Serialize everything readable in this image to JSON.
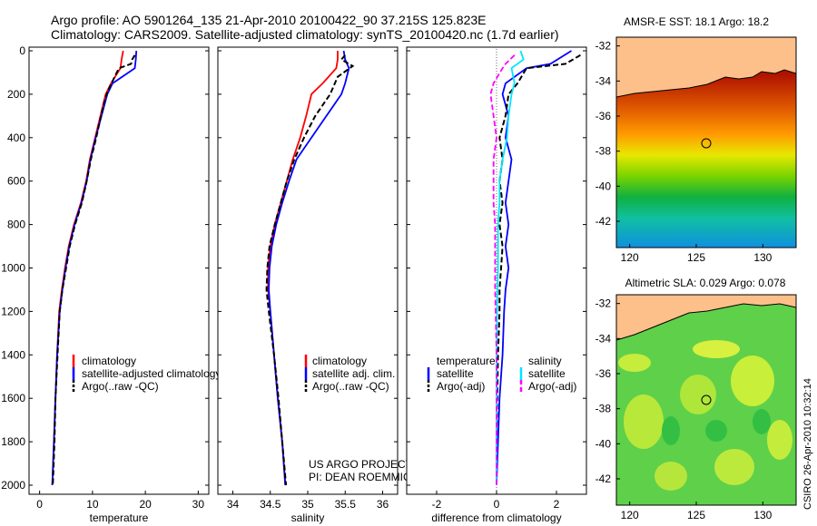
{
  "title_line1": "Argo profile: AO 5901264_135 21-Apr-2010 20100422_90 37.215S 125.823E",
  "title_line2": "Climatology: CARS2009. Satellite-adjusted climatology: synTS_20100420.nc (1.7d earlier)",
  "side_label": "CSIRO 26-Apr-2010 10:32:14",
  "colors": {
    "climatology": "#ff0000",
    "satellite": "#0000ff",
    "argo": "#000000",
    "sat_diff_salinity": "#00e5ff",
    "argo_diff_salinity": "#ff00ff"
  },
  "chart_data": [
    {
      "type": "line",
      "xlabel": "temperature",
      "ylabel": "",
      "xlim": [
        -2,
        32
      ],
      "ylim": [
        2000,
        0
      ],
      "xticks": [
        "0",
        "10",
        "20",
        "30"
      ],
      "yticks": [
        "0",
        "200",
        "400",
        "600",
        "800",
        "1000",
        "1200",
        "1400",
        "1600",
        "1800",
        "2000"
      ],
      "legend": [
        "climatology",
        "satellite-adjusted climatology",
        "Argo(..raw -QC)"
      ],
      "series": [
        {
          "name": "climatology",
          "color": "red",
          "points": [
            [
              15.8,
              0
            ],
            [
              15.5,
              40
            ],
            [
              15.3,
              80
            ],
            [
              13.5,
              150
            ],
            [
              12.5,
              200
            ],
            [
              11.5,
              300
            ],
            [
              10.5,
              400
            ],
            [
              9.5,
              500
            ],
            [
              8.8,
              600
            ],
            [
              7.8,
              700
            ],
            [
              6.5,
              800
            ],
            [
              5.5,
              900
            ],
            [
              4.8,
              1000
            ],
            [
              4.2,
              1100
            ],
            [
              3.7,
              1200
            ],
            [
              3.3,
              1400
            ],
            [
              3.0,
              1600
            ],
            [
              2.7,
              1800
            ],
            [
              2.4,
              2000
            ]
          ]
        },
        {
          "name": "satellite-adjusted climatology",
          "color": "blue",
          "points": [
            [
              18.3,
              0
            ],
            [
              18.2,
              40
            ],
            [
              18.0,
              80
            ],
            [
              13.8,
              150
            ],
            [
              12.8,
              200
            ],
            [
              11.7,
              300
            ],
            [
              10.6,
              400
            ],
            [
              9.6,
              500
            ],
            [
              8.9,
              600
            ],
            [
              7.9,
              700
            ],
            [
              6.6,
              800
            ],
            [
              5.6,
              900
            ],
            [
              4.9,
              1000
            ],
            [
              4.3,
              1100
            ],
            [
              3.8,
              1200
            ],
            [
              3.3,
              1400
            ],
            [
              3.0,
              1600
            ],
            [
              2.7,
              1800
            ],
            [
              2.4,
              2000
            ]
          ]
        },
        {
          "name": "Argo(..raw -QC)",
          "color": "black",
          "points": [
            [
              18.0,
              20
            ],
            [
              17.5,
              40
            ],
            [
              17.3,
              60
            ],
            [
              15.0,
              80
            ],
            [
              14.2,
              120
            ],
            [
              13.0,
              180
            ],
            [
              12.4,
              220
            ],
            [
              11.6,
              300
            ],
            [
              10.7,
              400
            ],
            [
              9.7,
              500
            ],
            [
              8.9,
              600
            ],
            [
              8.0,
              700
            ],
            [
              6.7,
              800
            ],
            [
              5.7,
              900
            ],
            [
              5.0,
              1000
            ],
            [
              4.3,
              1100
            ],
            [
              3.8,
              1200
            ],
            [
              3.4,
              1400
            ],
            [
              3.0,
              1600
            ],
            [
              2.8,
              1800
            ],
            [
              2.5,
              2000
            ]
          ]
        }
      ]
    },
    {
      "type": "line",
      "xlabel": "salinity",
      "xlim": [
        33.8,
        36.2
      ],
      "ylim": [
        2000,
        0
      ],
      "xticks": [
        "34",
        "34.5",
        "35",
        "35.5",
        "36"
      ],
      "legend": [
        "climatology",
        "satellite adj. clim.",
        "Argo(..raw -QC)"
      ],
      "annotation": [
        "US ARGO PROJECT",
        "PI: DEAN ROEMMICH"
      ],
      "series": [
        {
          "name": "climatology",
          "color": "red",
          "points": [
            [
              35.4,
              0
            ],
            [
              35.4,
              40
            ],
            [
              35.38,
              80
            ],
            [
              35.2,
              150
            ],
            [
              35.05,
              200
            ],
            [
              34.98,
              300
            ],
            [
              34.9,
              400
            ],
            [
              34.8,
              500
            ],
            [
              34.72,
              600
            ],
            [
              34.64,
              700
            ],
            [
              34.56,
              800
            ],
            [
              34.5,
              900
            ],
            [
              34.47,
              1000
            ],
            [
              34.47,
              1100
            ],
            [
              34.5,
              1200
            ],
            [
              34.55,
              1400
            ],
            [
              34.6,
              1600
            ],
            [
              34.66,
              1800
            ],
            [
              34.7,
              2000
            ]
          ]
        },
        {
          "name": "satellite adj. clim.",
          "color": "blue",
          "points": [
            [
              35.48,
              0
            ],
            [
              35.5,
              40
            ],
            [
              35.55,
              80
            ],
            [
              35.5,
              150
            ],
            [
              35.45,
              200
            ],
            [
              35.25,
              300
            ],
            [
              35.05,
              400
            ],
            [
              34.85,
              500
            ],
            [
              34.75,
              600
            ],
            [
              34.66,
              700
            ],
            [
              34.58,
              800
            ],
            [
              34.52,
              900
            ],
            [
              34.49,
              1000
            ],
            [
              34.48,
              1100
            ],
            [
              34.5,
              1200
            ],
            [
              34.55,
              1400
            ],
            [
              34.6,
              1600
            ],
            [
              34.66,
              1800
            ],
            [
              34.7,
              2000
            ]
          ]
        },
        {
          "name": "Argo(..raw -QC)",
          "color": "black",
          "points": [
            [
              35.5,
              20
            ],
            [
              35.45,
              40
            ],
            [
              35.6,
              70
            ],
            [
              35.4,
              120
            ],
            [
              35.3,
              200
            ],
            [
              35.1,
              300
            ],
            [
              34.95,
              400
            ],
            [
              34.82,
              500
            ],
            [
              34.72,
              600
            ],
            [
              34.64,
              700
            ],
            [
              34.56,
              800
            ],
            [
              34.49,
              900
            ],
            [
              34.46,
              1000
            ],
            [
              34.45,
              1100
            ],
            [
              34.48,
              1200
            ],
            [
              34.55,
              1400
            ],
            [
              34.61,
              1600
            ],
            [
              34.66,
              1800
            ],
            [
              34.71,
              2000
            ]
          ]
        }
      ]
    },
    {
      "type": "line",
      "xlabel": "difference from climatology",
      "xlim": [
        -3.0,
        3.0
      ],
      "ylim": [
        2000,
        0
      ],
      "xticks": [
        "-2",
        "0",
        "2"
      ],
      "legend_left_title": "temperature",
      "legend_right_title": "salinity",
      "legend_left": [
        "satellite",
        "Argo(-adj)"
      ],
      "legend_right": [
        "satellite",
        "Argo(-adj)"
      ],
      "series": [
        {
          "name": "temperature satellite",
          "color": "blue",
          "points": [
            [
              2.5,
              0
            ],
            [
              1.8,
              60
            ],
            [
              1.0,
              80
            ],
            [
              0.3,
              150
            ],
            [
              0.2,
              200
            ],
            [
              0.4,
              300
            ],
            [
              0.3,
              400
            ],
            [
              0.5,
              500
            ],
            [
              0.4,
              600
            ],
            [
              0.3,
              700
            ],
            [
              0.4,
              800
            ],
            [
              0.3,
              900
            ],
            [
              0.4,
              1000
            ],
            [
              0.3,
              1100
            ],
            [
              0.25,
              1200
            ],
            [
              0.2,
              1400
            ],
            [
              0.1,
              1600
            ],
            [
              0.05,
              1800
            ],
            [
              0.0,
              2000
            ]
          ]
        },
        {
          "name": "temperature Argo(-adj)",
          "color": "black",
          "points": [
            [
              2.8,
              20
            ],
            [
              2.3,
              60
            ],
            [
              1.0,
              80
            ],
            [
              0.7,
              150
            ],
            [
              0.4,
              200
            ],
            [
              0.3,
              300
            ],
            [
              0.1,
              400
            ],
            [
              0.2,
              500
            ],
            [
              0.1,
              600
            ],
            [
              0.2,
              700
            ],
            [
              0.1,
              800
            ],
            [
              0.2,
              900
            ],
            [
              0.15,
              1000
            ],
            [
              0.1,
              1100
            ],
            [
              0.1,
              1200
            ],
            [
              0.05,
              1400
            ],
            [
              0.02,
              1600
            ],
            [
              0.0,
              1800
            ],
            [
              0.0,
              2000
            ]
          ]
        },
        {
          "name": "salinity satellite",
          "color": "cyan",
          "points": [
            [
              0.8,
              0
            ],
            [
              0.9,
              40
            ],
            [
              0.5,
              80
            ],
            [
              0.6,
              150
            ],
            [
              0.5,
              200
            ],
            [
              0.4,
              300
            ],
            [
              0.35,
              400
            ],
            [
              0.2,
              500
            ],
            [
              0.1,
              600
            ],
            [
              0.1,
              700
            ],
            [
              0.05,
              800
            ],
            [
              0.05,
              900
            ],
            [
              0.05,
              1000
            ],
            [
              0.03,
              1100
            ],
            [
              0.02,
              1200
            ],
            [
              0.0,
              1400
            ],
            [
              0.0,
              1600
            ],
            [
              0.0,
              1800
            ],
            [
              0.0,
              2000
            ]
          ]
        },
        {
          "name": "salinity Argo(-adj)",
          "color": "magenta",
          "points": [
            [
              0.6,
              20
            ],
            [
              0.3,
              60
            ],
            [
              0.2,
              80
            ],
            [
              -0.1,
              150
            ],
            [
              -0.2,
              200
            ],
            [
              -0.1,
              300
            ],
            [
              0.0,
              400
            ],
            [
              -0.1,
              500
            ],
            [
              -0.1,
              600
            ],
            [
              -0.1,
              700
            ],
            [
              -0.05,
              800
            ],
            [
              -0.05,
              900
            ],
            [
              -0.05,
              1000
            ],
            [
              -0.05,
              1100
            ],
            [
              -0.03,
              1200
            ],
            [
              0.0,
              1400
            ],
            [
              0.0,
              1600
            ],
            [
              0.0,
              1800
            ],
            [
              0.0,
              2000
            ]
          ]
        }
      ]
    },
    {
      "type": "heatmap",
      "title": "AMSR-E SST: 18.1 Argo: 18.2",
      "xlim": [
        119,
        132.5
      ],
      "ylim": [
        -43.5,
        -31.5
      ],
      "xticks": [
        "120",
        "125",
        "130"
      ],
      "yticks": [
        "-32",
        "-34",
        "-36",
        "-38",
        "-40",
        "-42"
      ],
      "marker": [
        125.8,
        -37.2
      ]
    },
    {
      "type": "heatmap",
      "title": "Altimetric SLA: 0.029 Argo: 0.078",
      "xlim": [
        119,
        132.5
      ],
      "ylim": [
        -43.5,
        -31.5
      ],
      "xticks": [
        "120",
        "125",
        "130"
      ],
      "yticks": [
        "-32",
        "-34",
        "-36",
        "-38",
        "-40",
        "-42"
      ],
      "marker": [
        125.8,
        -37.2
      ]
    }
  ]
}
